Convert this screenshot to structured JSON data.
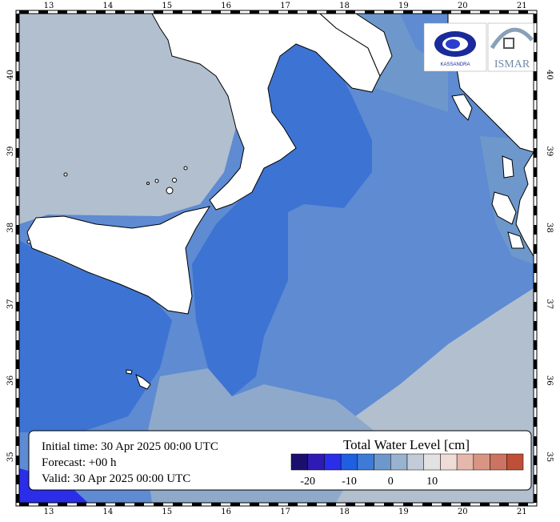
{
  "map": {
    "lon_ticks": [
      "13",
      "14",
      "15",
      "16",
      "17",
      "18",
      "19",
      "20",
      "21"
    ],
    "lat_ticks": [
      "35",
      "36",
      "37",
      "38",
      "39",
      "40"
    ],
    "lon_range": [
      12.5,
      21.2
    ],
    "lat_range": [
      34.4,
      40.8
    ]
  },
  "info_box": {
    "initial_time": "Initial time: 30 Apr 2025 00:00 UTC",
    "forecast": "Forecast: +00 h",
    "valid": "Valid: 30 Apr 2025 00:00 UTC"
  },
  "colorbar": {
    "title": "Total Water Level [cm]",
    "labels": [
      "-20",
      "-10",
      "0",
      "10"
    ],
    "colors": [
      "#1b0f6e",
      "#2f1bb3",
      "#2a2ee8",
      "#1f5fe0",
      "#3d7bd6",
      "#6e98cc",
      "#98b3cf",
      "#c2ccd8",
      "#e2e2e2",
      "#efdcd6",
      "#e5b8ab",
      "#d99584",
      "#cc7461",
      "#bf4f38"
    ]
  },
  "logos": {
    "left_text": "KASSANDRA",
    "right_text": "ISMAR"
  },
  "colors": {
    "land": "#ffffff",
    "coast": "#000000",
    "water_dark": "#3d73d2",
    "water_mid": "#5e8bd2",
    "water_light": "#8fa9cb",
    "water_pale": "#b2bfcf"
  }
}
